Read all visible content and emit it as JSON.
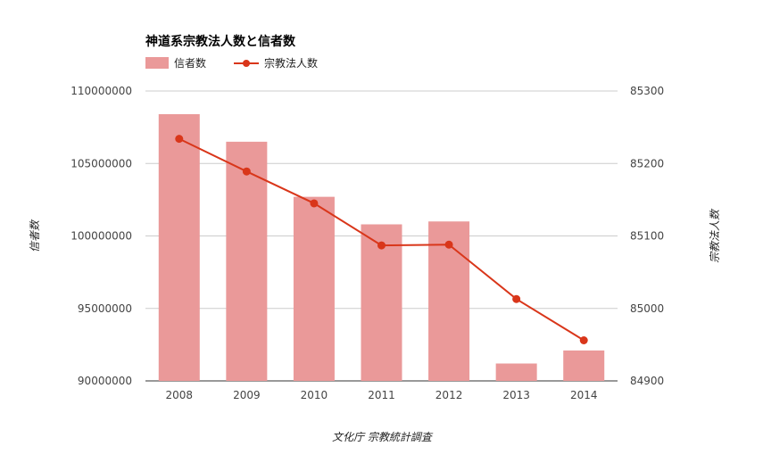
{
  "chart_data": {
    "type": "bar",
    "title": "神道系宗教法人数と信者数",
    "legend_position": "top-left",
    "grid": true,
    "categories": [
      "2008",
      "2009",
      "2010",
      "2011",
      "2012",
      "2013",
      "2014"
    ],
    "series": [
      {
        "name": "信者数",
        "type": "bar",
        "axis": "left",
        "color": "#ea9999",
        "values": [
          108400000,
          106500000,
          102700000,
          100800000,
          101000000,
          91200000,
          92100000
        ]
      },
      {
        "name": "宗教法人数",
        "type": "line",
        "axis": "right",
        "color": "#d9361a",
        "values": [
          85234,
          85189,
          85145,
          85087,
          85088,
          85013,
          84956
        ]
      }
    ],
    "y_left": {
      "label": "信者数",
      "range": [
        90000000,
        110000000
      ],
      "ticks": [
        "110000000",
        "105000000",
        "100000000",
        "95000000",
        "90000000"
      ]
    },
    "y_right": {
      "label": "宗教法人数",
      "range": [
        84900,
        85300
      ],
      "ticks": [
        "85300",
        "85200",
        "85100",
        "85000",
        "84900"
      ]
    },
    "source": "文化庁 宗教統計調査"
  }
}
